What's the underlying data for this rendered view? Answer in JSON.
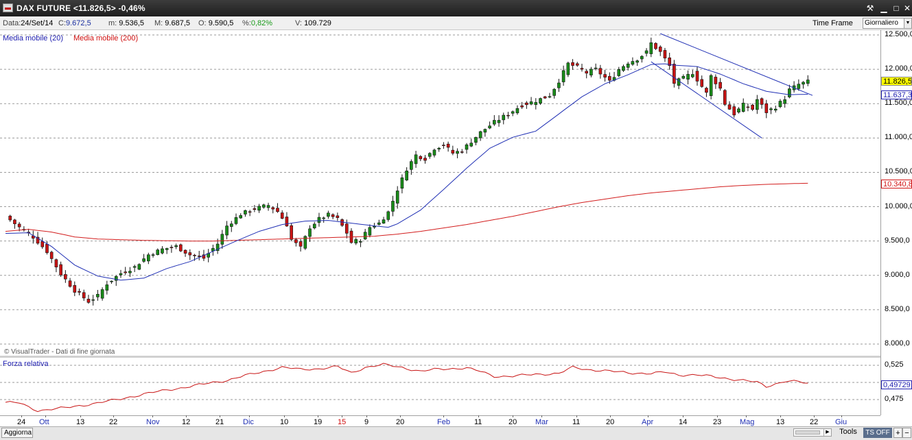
{
  "window": {
    "title": "DAX FUTURE <11.826,5> -0,46%",
    "buttons": {
      "tools": "⚒",
      "minimize": "▁",
      "maximize": "□",
      "close": "✕"
    },
    "icons": {
      "app": "chart-app-icon",
      "tools": "wrench-icon",
      "minimize": "minimize-icon",
      "maximize": "maximize-icon",
      "close": "close-icon"
    }
  },
  "infobar": {
    "data_label": "Data:",
    "data_value": "24/Set/14",
    "close_label": "C:",
    "close_value": "9.672,5",
    "min_label": "m:",
    "min_value": "9.536,5",
    "max_label": "M:",
    "max_value": "9.687,5",
    "open_label": "O:",
    "open_value": "9.590,5",
    "pct_label": "%:",
    "pct_value": "0,82%",
    "vol_label": "V:",
    "vol_value": "109.729",
    "timeframe_label": "Time Frame",
    "timeframe_value": "Giornaliero"
  },
  "indicators": {
    "ma20": "Media mobile (20)",
    "ma200": "Media mobile (200)",
    "relative_strength": "Forza relativa"
  },
  "credit": "© VisualTrader - Dati di fine giornata",
  "price_axis": [
    "12.500,0",
    "12.000,0",
    "11.500,0",
    "11.000,0",
    "10.500,0",
    "10.000,0",
    "9.500,0",
    "9.000,0",
    "8.500,0",
    "8.000,0"
  ],
  "rs_axis": [
    "0,525",
    "0,475"
  ],
  "price_boxes": {
    "last": "11.826,5",
    "ma20": "11.637,3",
    "ma200": "10.340,8",
    "rs": "0,49729"
  },
  "x_axis": [
    "24",
    "Ott",
    "13",
    "22",
    "Nov",
    "12",
    "21",
    "Dic",
    "10",
    "19",
    "15",
    "9",
    "20",
    "Feb",
    "11",
    "20",
    "Mar",
    "11",
    "20",
    "Apr",
    "14",
    "23",
    "Mag",
    "13",
    "22",
    "Giu"
  ],
  "statusbar": {
    "refresh": "Aggiorna",
    "tools": "Tools",
    "ts_off": "TS OFF",
    "zoom_in": "+",
    "zoom_out": "−"
  },
  "colors": {
    "up": "#1a8c1a",
    "down": "#c81414",
    "ma20": "#1f2fb4",
    "ma200": "#d21c1c",
    "rs": "#c81414",
    "trendline": "#1f2fb4"
  },
  "chart_data": {
    "type": "candlestick",
    "title": "DAX FUTURE",
    "ylim": [
      7900,
      12600
    ],
    "rs_ylim": [
      0.455,
      0.545
    ],
    "anchors": [
      [
        0,
        9860
      ],
      [
        3,
        9700
      ],
      [
        6,
        9560
      ],
      [
        9,
        9350
      ],
      [
        12,
        9020
      ],
      [
        15,
        8780
      ],
      [
        18,
        8620
      ],
      [
        20,
        8700
      ],
      [
        22,
        8880
      ],
      [
        25,
        9030
      ],
      [
        28,
        9120
      ],
      [
        31,
        9300
      ],
      [
        34,
        9380
      ],
      [
        37,
        9420
      ],
      [
        40,
        9300
      ],
      [
        43,
        9250
      ],
      [
        46,
        9460
      ],
      [
        48,
        9720
      ],
      [
        51,
        9890
      ],
      [
        54,
        9970
      ],
      [
        57,
        10020
      ],
      [
        59,
        9930
      ],
      [
        61,
        9740
      ],
      [
        62,
        9520
      ],
      [
        64,
        9400
      ],
      [
        66,
        9700
      ],
      [
        68,
        9820
      ],
      [
        70,
        9880
      ],
      [
        72,
        9820
      ],
      [
        74,
        9620
      ],
      [
        75,
        9480
      ],
      [
        77,
        9520
      ],
      [
        79,
        9700
      ],
      [
        81,
        9760
      ],
      [
        83,
        9920
      ],
      [
        85,
        10250
      ],
      [
        87,
        10550
      ],
      [
        89,
        10750
      ],
      [
        91,
        10700
      ],
      [
        93,
        10850
      ],
      [
        95,
        10900
      ],
      [
        97,
        10780
      ],
      [
        99,
        10820
      ],
      [
        101,
        10950
      ],
      [
        103,
        11080
      ],
      [
        106,
        11230
      ],
      [
        109,
        11350
      ],
      [
        112,
        11480
      ],
      [
        115,
        11540
      ],
      [
        118,
        11620
      ],
      [
        120,
        11830
      ],
      [
        122,
        12080
      ],
      [
        124,
        12030
      ],
      [
        126,
        11950
      ],
      [
        128,
        12000
      ],
      [
        130,
        11880
      ],
      [
        131,
        11820
      ],
      [
        133,
        12000
      ],
      [
        135,
        12100
      ],
      [
        137,
        12150
      ],
      [
        139,
        12250
      ],
      [
        140,
        12380
      ],
      [
        142,
        12250
      ],
      [
        144,
        12050
      ],
      [
        145,
        11800
      ],
      [
        147,
        11870
      ],
      [
        149,
        11950
      ],
      [
        150,
        11850
      ],
      [
        152,
        11650
      ],
      [
        153,
        11900
      ],
      [
        155,
        11720
      ],
      [
        156,
        11500
      ],
      [
        158,
        11350
      ],
      [
        160,
        11480
      ],
      [
        162,
        11420
      ],
      [
        163,
        11560
      ],
      [
        165,
        11380
      ],
      [
        167,
        11450
      ],
      [
        169,
        11580
      ],
      [
        170,
        11700
      ],
      [
        172,
        11780
      ],
      [
        174,
        11820
      ]
    ],
    "ma20_anchors": [
      [
        0,
        9610
      ],
      [
        5,
        9620
      ],
      [
        10,
        9420
      ],
      [
        15,
        9150
      ],
      [
        20,
        8990
      ],
      [
        25,
        8930
      ],
      [
        30,
        8960
      ],
      [
        35,
        9100
      ],
      [
        40,
        9200
      ],
      [
        45,
        9350
      ],
      [
        50,
        9500
      ],
      [
        55,
        9640
      ],
      [
        60,
        9740
      ],
      [
        65,
        9790
      ],
      [
        70,
        9800
      ],
      [
        75,
        9760
      ],
      [
        80,
        9720
      ],
      [
        83,
        9700
      ],
      [
        85,
        9750
      ],
      [
        90,
        9950
      ],
      [
        95,
        10250
      ],
      [
        100,
        10560
      ],
      [
        105,
        10850
      ],
      [
        110,
        11010
      ],
      [
        115,
        11100
      ],
      [
        120,
        11350
      ],
      [
        125,
        11600
      ],
      [
        130,
        11790
      ],
      [
        135,
        11920
      ],
      [
        140,
        12070
      ],
      [
        143,
        12080
      ],
      [
        145,
        12060
      ],
      [
        150,
        12040
      ],
      [
        155,
        11930
      ],
      [
        160,
        11790
      ],
      [
        165,
        11680
      ],
      [
        170,
        11630
      ],
      [
        174,
        11637
      ]
    ],
    "ma200_anchors": [
      [
        0,
        9640
      ],
      [
        5,
        9670
      ],
      [
        10,
        9630
      ],
      [
        15,
        9560
      ],
      [
        20,
        9530
      ],
      [
        25,
        9520
      ],
      [
        30,
        9510
      ],
      [
        35,
        9505
      ],
      [
        40,
        9500
      ],
      [
        45,
        9500
      ],
      [
        50,
        9510
      ],
      [
        55,
        9520
      ],
      [
        60,
        9530
      ],
      [
        65,
        9540
      ],
      [
        70,
        9550
      ],
      [
        75,
        9560
      ],
      [
        80,
        9570
      ],
      [
        85,
        9600
      ],
      [
        90,
        9640
      ],
      [
        95,
        9690
      ],
      [
        100,
        9740
      ],
      [
        105,
        9800
      ],
      [
        110,
        9860
      ],
      [
        115,
        9930
      ],
      [
        120,
        10000
      ],
      [
        125,
        10060
      ],
      [
        130,
        10110
      ],
      [
        135,
        10160
      ],
      [
        140,
        10200
      ],
      [
        145,
        10230
      ],
      [
        150,
        10260
      ],
      [
        155,
        10290
      ],
      [
        160,
        10310
      ],
      [
        165,
        10325
      ],
      [
        170,
        10335
      ],
      [
        174,
        10341
      ]
    ],
    "rs_anchors": [
      [
        0,
        0.471
      ],
      [
        3,
        0.47
      ],
      [
        5,
        0.464
      ],
      [
        7,
        0.459
      ],
      [
        10,
        0.461
      ],
      [
        13,
        0.463
      ],
      [
        16,
        0.466
      ],
      [
        20,
        0.47
      ],
      [
        25,
        0.476
      ],
      [
        30,
        0.483
      ],
      [
        35,
        0.489
      ],
      [
        40,
        0.494
      ],
      [
        45,
        0.5
      ],
      [
        48,
        0.503
      ],
      [
        52,
        0.51
      ],
      [
        56,
        0.516
      ],
      [
        60,
        0.522
      ],
      [
        64,
        0.519
      ],
      [
        68,
        0.52
      ],
      [
        72,
        0.523
      ],
      [
        75,
        0.514
      ],
      [
        78,
        0.522
      ],
      [
        82,
        0.526
      ],
      [
        86,
        0.522
      ],
      [
        90,
        0.516
      ],
      [
        93,
        0.519
      ],
      [
        96,
        0.52
      ],
      [
        100,
        0.521
      ],
      [
        103,
        0.516
      ],
      [
        106,
        0.509
      ],
      [
        110,
        0.509
      ],
      [
        115,
        0.512
      ],
      [
        120,
        0.513
      ],
      [
        123,
        0.522
      ],
      [
        126,
        0.519
      ],
      [
        130,
        0.517
      ],
      [
        135,
        0.514
      ],
      [
        140,
        0.513
      ],
      [
        143,
        0.515
      ],
      [
        146,
        0.511
      ],
      [
        150,
        0.511
      ],
      [
        155,
        0.507
      ],
      [
        160,
        0.503
      ],
      [
        163,
        0.5
      ],
      [
        165,
        0.494
      ],
      [
        167,
        0.498
      ],
      [
        169,
        0.502
      ],
      [
        172,
        0.501
      ],
      [
        174,
        0.498
      ]
    ],
    "trendlines": [
      {
        "from": [
          142,
          12520
        ],
        "to": [
          175,
          11620
        ]
      },
      {
        "from": [
          140,
          12110
        ],
        "to": [
          164,
          11000
        ]
      }
    ]
  }
}
